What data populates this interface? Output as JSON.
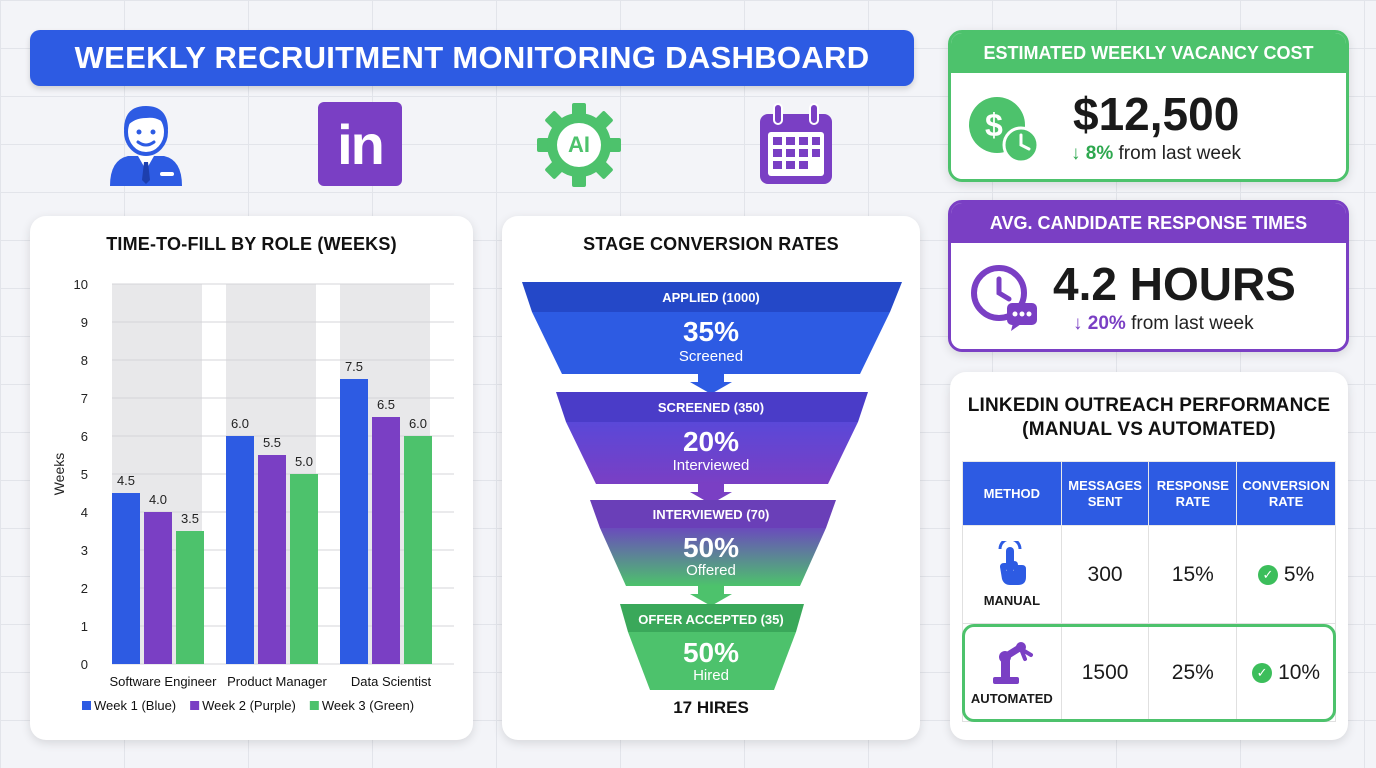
{
  "title": "WEEKLY RECRUITMENT MONITORING DASHBOARD",
  "header_icons": [
    "recruiter-avatar-icon",
    "linkedin-icon",
    "ai-gear-icon",
    "calendar-icon"
  ],
  "header_icon_text": {
    "linkedin": "in",
    "ai": "AI"
  },
  "colors": {
    "blue": "#2d5be3",
    "purple": "#7a3fc4",
    "green": "#4dc26c"
  },
  "vacancy_cost": {
    "title": "ESTIMATED WEEKLY VACANCY COST",
    "value": "$12,500",
    "arrow": "↓",
    "change_pct": "8%",
    "change_text": "from last week",
    "icon_text": "$"
  },
  "response_times": {
    "title": "AVG. CANDIDATE RESPONSE TIMES",
    "value": "4.2 HOURS",
    "arrow": "↓",
    "change_pct": "20%",
    "change_text": "from last week"
  },
  "time_to_fill": {
    "title": "TIME-TO-FILL BY ROLE (WEEKS)"
  },
  "chart_data": {
    "type": "bar",
    "title": "TIME-TO-FILL BY ROLE (WEEKS)",
    "ylabel": "Weeks",
    "xlabel": "",
    "ylim": [
      0,
      10
    ],
    "yticks": [
      "0",
      "1",
      "2",
      "3",
      "4",
      "5",
      "6",
      "7",
      "8",
      "9",
      "10"
    ],
    "categories": [
      "Software Engineer",
      "Product Manager",
      "Data Scientist"
    ],
    "series": [
      {
        "name": "Week 1 (Blue)",
        "color": "#2d5be3",
        "values": [
          4.5,
          6.0,
          7.5
        ],
        "labels": [
          "4.5",
          "6.0",
          "7.5"
        ]
      },
      {
        "name": "Week 2 (Purple)",
        "color": "#7a3fc4",
        "values": [
          4.0,
          5.5,
          6.5
        ],
        "labels": [
          "4.0",
          "5.5",
          "6.5"
        ]
      },
      {
        "name": "Week 3 (Green)",
        "color": "#4dc26c",
        "values": [
          3.5,
          5.0,
          6.0
        ],
        "labels": [
          "3.5",
          "5.0",
          "6.0"
        ]
      }
    ],
    "grid": true,
    "legend_position": "bottom"
  },
  "funnel": {
    "title": "STAGE CONVERSION RATES",
    "stages": [
      {
        "label": "APPLIED (1000)",
        "pct": "35%",
        "sub": "Screened"
      },
      {
        "label": "SCREENED (350)",
        "pct": "20%",
        "sub": "Interviewed"
      },
      {
        "label": "INTERVIEWED (70)",
        "pct": "50%",
        "sub": "Offered"
      },
      {
        "label": "OFFER ACCEPTED (35)",
        "pct": "50%",
        "sub": "Hired"
      }
    ],
    "result": "17 HIRES"
  },
  "linkedin": {
    "title_line1": "LINKEDIN OUTREACH PERFORMANCE",
    "title_line2": "(MANUAL VS AUTOMATED)",
    "headers": [
      "METHOD",
      "MESSAGES SENT",
      "RESPONSE RATE",
      "CONVERSION RATE"
    ],
    "rows": [
      {
        "method": "MANUAL",
        "icon": "hand-tap-icon",
        "messages": "300",
        "response": "15%",
        "conversion": "5%"
      },
      {
        "method": "AUTOMATED",
        "icon": "robot-arm-icon",
        "messages": "1500",
        "response": "25%",
        "conversion": "10%"
      }
    ]
  }
}
